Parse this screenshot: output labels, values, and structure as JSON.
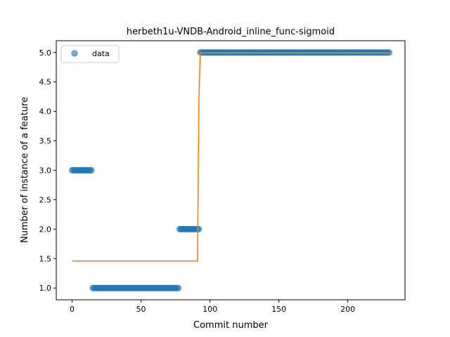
{
  "chart_data": {
    "type": "scatter",
    "title": "herbeth1u-VNDB-Android_inline_func-sigmoid",
    "xlabel": "Commit number",
    "ylabel": "Number of instance of a feature",
    "xlim": [
      -11.5,
      241.5
    ],
    "ylim": [
      0.8,
      5.2
    ],
    "xticks": [
      0,
      50,
      100,
      150,
      200
    ],
    "yticks": [
      1.0,
      1.5,
      2.0,
      2.5,
      3.0,
      3.5,
      4.0,
      4.5,
      5.0
    ],
    "grid": false,
    "legend": {
      "placement": "top-left",
      "entries": [
        "data"
      ]
    },
    "colors": {
      "data": "#1f77b4",
      "fit": "#ff7f0e"
    },
    "series": [
      {
        "name": "data",
        "kind": "scatter",
        "segments": [
          {
            "x_from": 0,
            "x_to": 14,
            "y": 3.0
          },
          {
            "x_from": 15,
            "x_to": 77,
            "y": 1.0
          },
          {
            "x_from": 78,
            "x_to": 92,
            "y": 2.0
          },
          {
            "x_from": 93,
            "x_to": 230,
            "y": 5.0
          }
        ]
      },
      {
        "kind": "line",
        "points": [
          [
            0,
            1.46
          ],
          [
            91,
            1.46
          ],
          [
            92,
            4.2
          ],
          [
            93,
            4.99
          ],
          [
            230,
            4.99
          ]
        ]
      }
    ]
  }
}
